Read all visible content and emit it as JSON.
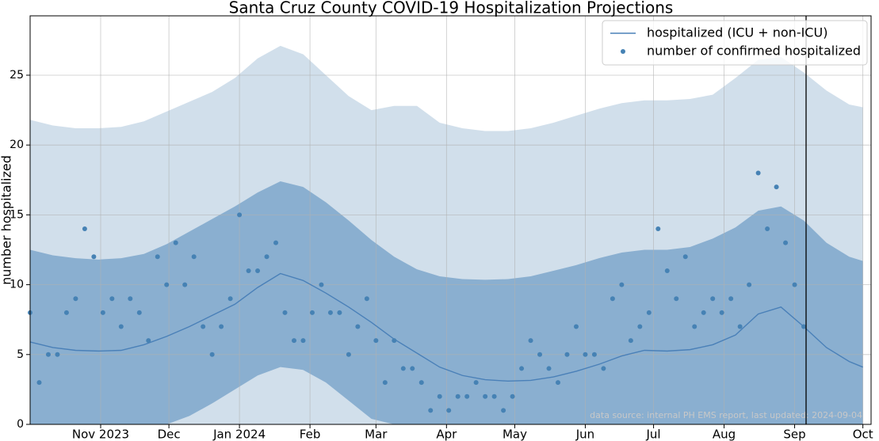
{
  "chart_data": {
    "type": "line",
    "title": "Santa Cruz County COVID-19 Hospitalization Projections",
    "y_label": "number hospitalized",
    "annotation": "data source: internal PH EMS report, last updated: 2024-09-04",
    "xlim": [
      0,
      369.6
    ],
    "ylim": [
      0,
      29.25
    ],
    "xticks": [
      {
        "value": 31,
        "label": "Nov 2023"
      },
      {
        "value": 61,
        "label": "Dec"
      },
      {
        "value": 92,
        "label": "Jan 2024"
      },
      {
        "value": 123,
        "label": "Feb"
      },
      {
        "value": 152,
        "label": "Mar"
      },
      {
        "value": 183,
        "label": "Apr"
      },
      {
        "value": 213,
        "label": "May"
      },
      {
        "value": 244,
        "label": "Jun"
      },
      {
        "value": 274,
        "label": "Jul"
      },
      {
        "value": 305,
        "label": "Aug"
      },
      {
        "value": 336,
        "label": "Sep"
      },
      {
        "value": 366,
        "label": "Oct"
      }
    ],
    "yticks": [
      0,
      5,
      10,
      15,
      20,
      25
    ],
    "grid": true,
    "legend": "upper right",
    "series": [
      {
        "name": "hospitalized (ICU + non-ICU)",
        "type": "line",
        "color": "#4a80b8",
        "x": [
          0,
          10,
          20,
          30,
          40,
          50,
          60,
          70,
          80,
          90,
          100,
          110,
          120,
          130,
          140,
          150,
          160,
          170,
          180,
          190,
          200,
          210,
          220,
          230,
          240,
          250,
          260,
          270,
          280,
          290,
          300,
          310,
          320,
          330,
          340,
          350,
          360,
          366
        ],
        "values": [
          5.9,
          5.5,
          5.3,
          5.25,
          5.3,
          5.7,
          6.3,
          7.0,
          7.8,
          8.6,
          9.8,
          10.8,
          10.3,
          9.4,
          8.4,
          7.3,
          6.1,
          5.1,
          4.1,
          3.5,
          3.2,
          3.1,
          3.15,
          3.4,
          3.8,
          4.3,
          4.9,
          5.3,
          5.25,
          5.35,
          5.7,
          6.4,
          7.9,
          8.4,
          7.0,
          5.5,
          4.5,
          4.1
        ],
        "bands": [
          {
            "color": "#d1dfeb",
            "lower": [
              0,
              0,
              0,
              0,
              0,
              0,
              0,
              0,
              0,
              0,
              0,
              0,
              0,
              0,
              0,
              0,
              0,
              0,
              0,
              0,
              0,
              0,
              0,
              0,
              0,
              0,
              0,
              0,
              0,
              0,
              0,
              0,
              0,
              0,
              0,
              0,
              0,
              0
            ],
            "upper": [
              21.8,
              21.4,
              21.2,
              21.2,
              21.3,
              21.7,
              22.4,
              23.1,
              23.8,
              24.8,
              26.2,
              27.1,
              26.5,
              25.0,
              23.5,
              22.5,
              22.8,
              22.8,
              21.6,
              21.2,
              21.0,
              21.0,
              21.2,
              21.6,
              22.1,
              22.6,
              23.0,
              23.2,
              23.2,
              23.3,
              23.6,
              24.8,
              26.1,
              26.3,
              25.2,
              23.9,
              22.9,
              22.7
            ]
          },
          {
            "color": "#8aafd0",
            "lower": [
              0,
              0,
              0,
              0,
              0,
              0,
              0,
              0.6,
              1.5,
              2.5,
              3.5,
              4.1,
              3.9,
              3.0,
              1.7,
              0.4,
              0,
              0,
              0,
              0,
              0,
              0,
              0,
              0,
              0,
              0,
              0,
              0,
              0,
              0,
              0,
              0,
              0,
              0,
              0,
              0,
              0,
              0
            ],
            "upper": [
              12.5,
              12.1,
              11.9,
              11.8,
              11.9,
              12.2,
              12.9,
              13.8,
              14.7,
              15.6,
              16.6,
              17.4,
              17.0,
              15.9,
              14.6,
              13.2,
              12.0,
              11.1,
              10.6,
              10.4,
              10.35,
              10.4,
              10.6,
              11.0,
              11.4,
              11.9,
              12.3,
              12.5,
              12.5,
              12.7,
              13.3,
              14.1,
              15.3,
              15.6,
              14.6,
              13.0,
              12.0,
              11.7
            ]
          }
        ]
      },
      {
        "name": "number of confirmed hospitalized",
        "type": "scatter",
        "color": "#4682b4",
        "x": [
          0,
          4,
          8,
          12,
          16,
          20,
          24,
          28,
          32,
          36,
          40,
          44,
          48,
          52,
          56,
          60,
          64,
          68,
          72,
          76,
          80,
          84,
          88,
          92,
          96,
          100,
          104,
          108,
          112,
          116,
          120,
          124,
          128,
          132,
          136,
          140,
          144,
          148,
          152,
          156,
          160,
          164,
          168,
          172,
          176,
          180,
          184,
          188,
          192,
          196,
          200,
          204,
          208,
          212,
          216,
          220,
          224,
          228,
          232,
          236,
          240,
          244,
          248,
          252,
          256,
          260,
          264,
          268,
          272,
          276,
          280,
          284,
          288,
          292,
          296,
          300,
          304,
          308,
          312,
          316,
          320,
          324,
          328,
          332,
          336,
          340
        ],
        "values": [
          8,
          3,
          5,
          5,
          8,
          9,
          14,
          12,
          8,
          9,
          7,
          9,
          8,
          6,
          12,
          10,
          13,
          10,
          12,
          7,
          5,
          7,
          9,
          15,
          11,
          11,
          12,
          13,
          8,
          6,
          6,
          8,
          10,
          8,
          8,
          5,
          7,
          9,
          6,
          3,
          6,
          4,
          4,
          3,
          1,
          2,
          1,
          2,
          2,
          3,
          2,
          2,
          1,
          2,
          4,
          6,
          5,
          4,
          3,
          5,
          7,
          5,
          5,
          4,
          9,
          10,
          6,
          7,
          8,
          14,
          11,
          9,
          12,
          7,
          8,
          9,
          8,
          9,
          7,
          10,
          18,
          14,
          17,
          13,
          10,
          7
        ]
      }
    ]
  }
}
